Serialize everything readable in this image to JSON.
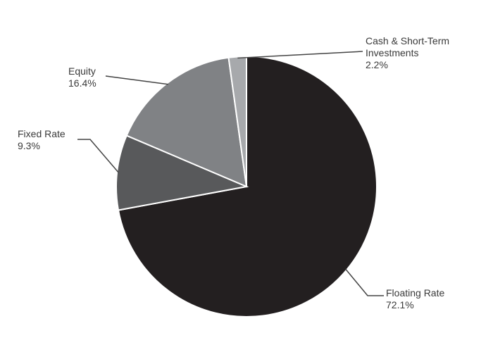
{
  "chart_data": {
    "type": "pie",
    "categories": [
      "Floating Rate",
      "Fixed Rate",
      "Equity",
      "Cash & Short-Term Investments"
    ],
    "values": [
      72.1,
      9.3,
      16.4,
      2.2
    ],
    "value_labels": [
      "72.1%",
      "9.3%",
      "16.4%",
      "2.2%"
    ],
    "colors": [
      "#231f20",
      "#58595b",
      "#808285",
      "#a7a9ac"
    ]
  }
}
